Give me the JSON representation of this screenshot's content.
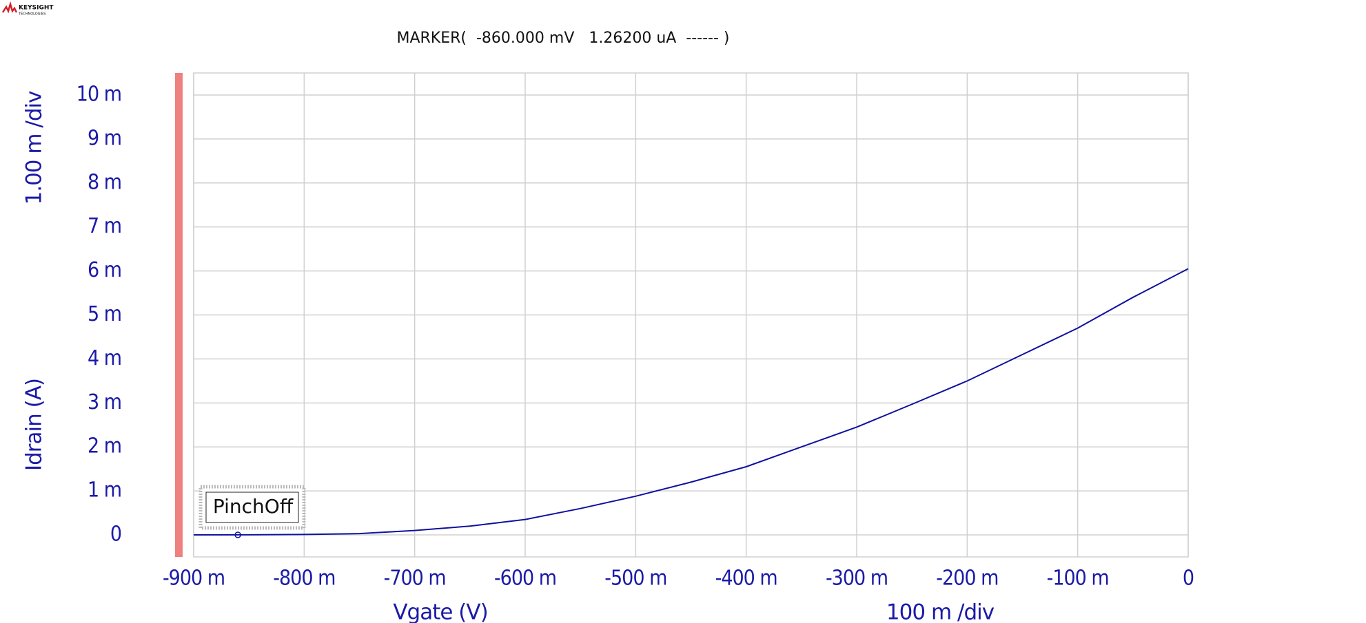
{
  "logo": {
    "name": "KEYSIGHT",
    "subtitle": "TECHNOLOGIES"
  },
  "chart_data": {
    "type": "line",
    "y_label": "Idrain (A)",
    "y_div": "1.00 m /div",
    "x_label": "Vgate (V)",
    "x_div": "100 m /div",
    "marker": {
      "text": "MARKER(  -860.000 mV   1.26200 uA  ------ )",
      "name": "PinchOff",
      "x": -0.86,
      "y": 1.26e-06
    },
    "x": [
      -0.9,
      -0.85,
      -0.8,
      -0.75,
      -0.7,
      -0.65,
      -0.6,
      -0.55,
      -0.5,
      -0.45,
      -0.4,
      -0.35,
      -0.3,
      -0.25,
      -0.2,
      -0.15,
      -0.1,
      -0.05,
      0
    ],
    "series": [
      {
        "name": "Idrain",
        "color": "#1010a0",
        "values": [
          0,
          2e-06,
          1e-05,
          3e-05,
          0.0001,
          0.0002,
          0.00035,
          0.0006,
          0.00088,
          0.0012,
          0.00155,
          0.002,
          0.00245,
          0.00297,
          0.0035,
          0.0041,
          0.0047,
          0.0054,
          0.00605
        ]
      }
    ],
    "xlim": [
      -0.9,
      0
    ],
    "ylim": [
      -0.0005,
      0.0105
    ],
    "xticks": [
      {
        "value": -0.9,
        "label": "-900 m"
      },
      {
        "value": -0.8,
        "label": "-800 m"
      },
      {
        "value": -0.7,
        "label": "-700 m"
      },
      {
        "value": -0.6,
        "label": "-600 m"
      },
      {
        "value": -0.5,
        "label": "-500 m"
      },
      {
        "value": -0.4,
        "label": "-400 m"
      },
      {
        "value": -0.3,
        "label": "-300 m"
      },
      {
        "value": -0.2,
        "label": "-200 m"
      },
      {
        "value": -0.1,
        "label": "-100 m"
      },
      0
    ],
    "yticks": [
      0,
      {
        "value": 0.001,
        "label": "1 m"
      },
      {
        "value": 0.002,
        "label": "2 m"
      },
      {
        "value": 0.003,
        "label": "3 m"
      },
      {
        "value": 0.004,
        "label": "4 m"
      },
      {
        "value": 0.005,
        "label": "5 m"
      },
      {
        "value": 0.006,
        "label": "6 m"
      },
      {
        "value": 0.007,
        "label": "7 m"
      },
      {
        "value": 0.008,
        "label": "8 m"
      },
      {
        "value": 0.009,
        "label": "9 m"
      },
      {
        "value": 0.01,
        "label": "10 m"
      }
    ],
    "grid": true
  }
}
